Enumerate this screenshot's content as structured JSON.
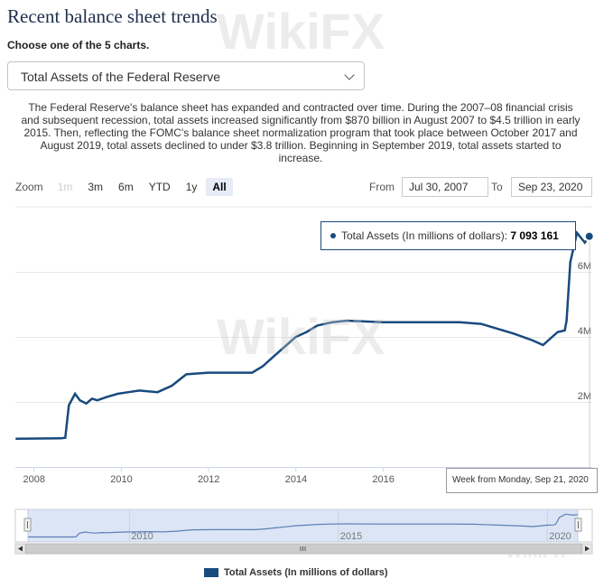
{
  "header": {
    "title": "Recent balance sheet trends",
    "subtitle": "Choose one of the 5 charts."
  },
  "selector": {
    "value": "Total Assets of the Federal Reserve"
  },
  "description": "The Federal Reserve's balance sheet has expanded and contracted over time. During the 2007–08 financial crisis and subsequent recession, total assets increased significantly from $870 billion in August 2007 to $4.5 trillion in early 2015. Then, reflecting the FOMC's balance sheet normalization program that took place between October 2017 and August 2019, total assets declined to under $3.8 trillion. Beginning in September 2019, total assets started to increase.",
  "zoom": {
    "label": "Zoom",
    "buttons": [
      {
        "label": "1m",
        "state": "disabled"
      },
      {
        "label": "3m",
        "state": "normal"
      },
      {
        "label": "6m",
        "state": "normal"
      },
      {
        "label": "YTD",
        "state": "normal"
      },
      {
        "label": "1y",
        "state": "normal"
      },
      {
        "label": "All",
        "state": "active"
      }
    ]
  },
  "range": {
    "from_label": "From",
    "from_value": "Jul 30, 2007",
    "to_label": "To",
    "to_value": "Sep 23, 2020"
  },
  "tooltip": {
    "series_label": "Total Assets (In millions of dollars):",
    "value": "7 093 161",
    "x_label": "Week from Monday, Sep 21, 2020"
  },
  "watermark": "WikiFX",
  "colors": {
    "series": "#184a7d",
    "navigator_fill": "#dbe5f5",
    "grid": "#e6e6e6"
  },
  "chart_data": {
    "type": "line",
    "title": "",
    "xlabel": "",
    "ylabel": "",
    "x_range": [
      "2007-07-30",
      "2020-09-23"
    ],
    "ylim": [
      0,
      8000000
    ],
    "y_ticks": [
      {
        "value": 0,
        "label": "0"
      },
      {
        "value": 2000000,
        "label": "2M"
      },
      {
        "value": 4000000,
        "label": "4M"
      },
      {
        "value": 6000000,
        "label": "6M"
      }
    ],
    "x_ticks": [
      "2008",
      "2010",
      "2012",
      "2014",
      "2016"
    ],
    "navigator_ticks": [
      "2010",
      "2015",
      "2020"
    ],
    "legend_position": "bottom-center",
    "grid": true,
    "series": [
      {
        "name": "Total Assets (In millions of dollars)",
        "x": [
          "2007-08-01",
          "2008-08-15",
          "2008-09-20",
          "2008-10-20",
          "2008-12-10",
          "2009-01-20",
          "2009-03-15",
          "2009-05-01",
          "2009-06-15",
          "2009-09-01",
          "2009-12-01",
          "2010-03-01",
          "2010-06-01",
          "2010-11-01",
          "2011-03-01",
          "2011-06-30",
          "2011-12-31",
          "2012-06-30",
          "2012-12-31",
          "2013-03-31",
          "2013-06-30",
          "2013-09-30",
          "2013-12-31",
          "2014-03-31",
          "2014-06-30",
          "2014-10-31",
          "2015-03-01",
          "2015-12-31",
          "2016-06-30",
          "2016-12-31",
          "2017-06-30",
          "2017-10-01",
          "2018-03-31",
          "2018-06-30",
          "2018-12-31",
          "2019-05-31",
          "2019-08-31",
          "2019-12-31",
          "2020-02-29",
          "2020-03-15",
          "2020-04-15",
          "2020-06-10",
          "2020-08-15",
          "2020-09-21"
        ],
        "y": [
          870000,
          880000,
          900000,
          1900000,
          2250000,
          2050000,
          1950000,
          2100000,
          2050000,
          2150000,
          2250000,
          2300000,
          2350000,
          2300000,
          2500000,
          2850000,
          2900000,
          2900000,
          2900000,
          3100000,
          3400000,
          3700000,
          4000000,
          4150000,
          4350000,
          4450000,
          4500000,
          4450000,
          4450000,
          4450000,
          4450000,
          4450000,
          4400000,
          4300000,
          4100000,
          3900000,
          3750000,
          4150000,
          4200000,
          4500000,
          6300000,
          7200000,
          6900000,
          7093161
        ]
      }
    ]
  }
}
